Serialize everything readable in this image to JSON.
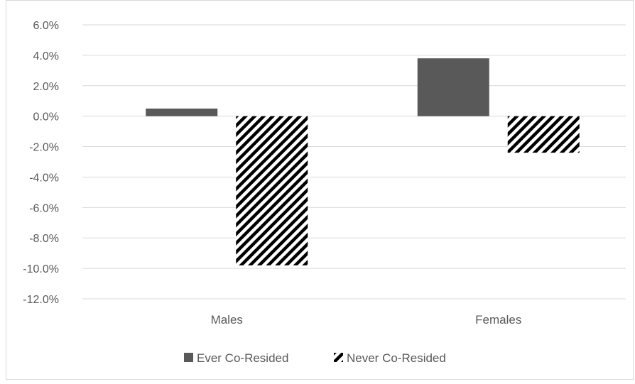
{
  "chart_data": {
    "type": "bar",
    "categories": [
      "Males",
      "Females"
    ],
    "series": [
      {
        "name": "Ever Co-Resided",
        "values": [
          0.5,
          3.8
        ],
        "color": "#595959",
        "pattern": "solid"
      },
      {
        "name": "Never Co-Resided",
        "values": [
          -9.8,
          -2.4
        ],
        "color": "#000000",
        "pattern": "diagonal-stripes"
      }
    ],
    "title": "",
    "xlabel": "",
    "ylabel": "",
    "ylim": [
      -12,
      6
    ],
    "yticks": [
      6,
      4,
      2,
      0,
      -2,
      -4,
      -6,
      -8,
      -10,
      -12
    ],
    "ytick_format": "percent-1dp",
    "grid": true,
    "legend_position": "bottom"
  }
}
